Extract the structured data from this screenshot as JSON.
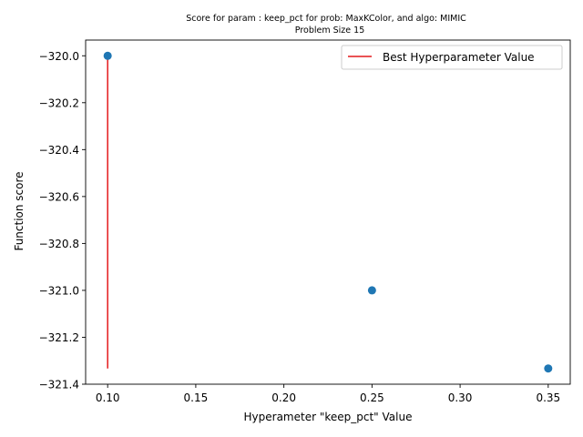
{
  "chart_data": {
    "type": "scatter",
    "title": "Score for param : keep_pct for prob: MaxKColor, and algo: MIMIC",
    "subtitle": "Problem Size 15",
    "xlabel": "Hyperameter \"keep_pct\" Value",
    "ylabel": "Function score",
    "xlim": [
      0.0875,
      0.3625
    ],
    "ylim": [
      -321.4,
      -319.933
    ],
    "xticks": [
      0.1,
      0.15,
      0.2,
      0.25,
      0.3,
      0.35
    ],
    "xtick_labels": [
      "0.10",
      "0.15",
      "0.20",
      "0.25",
      "0.30",
      "0.35"
    ],
    "yticks": [
      -320.0,
      -320.2,
      -320.4,
      -320.6,
      -320.8,
      -321.0,
      -321.2,
      -321.4
    ],
    "ytick_labels": [
      "−320.0",
      "−320.2",
      "−320.4",
      "−320.6",
      "−320.8",
      "−321.0",
      "−321.2",
      "−321.4"
    ],
    "points": [
      {
        "x": 0.1,
        "y": -320.0
      },
      {
        "x": 0.25,
        "y": -321.0
      },
      {
        "x": 0.35,
        "y": -321.333
      }
    ],
    "best_line": {
      "x": 0.1,
      "y_from": -321.333,
      "y_to": -320.0,
      "label": "Best Hyperparameter Value"
    },
    "legend_position": "top-right",
    "grid": false,
    "colors": {
      "points": "#1f77b4",
      "best_line": "#e41a1c",
      "axes": "#000000"
    }
  }
}
